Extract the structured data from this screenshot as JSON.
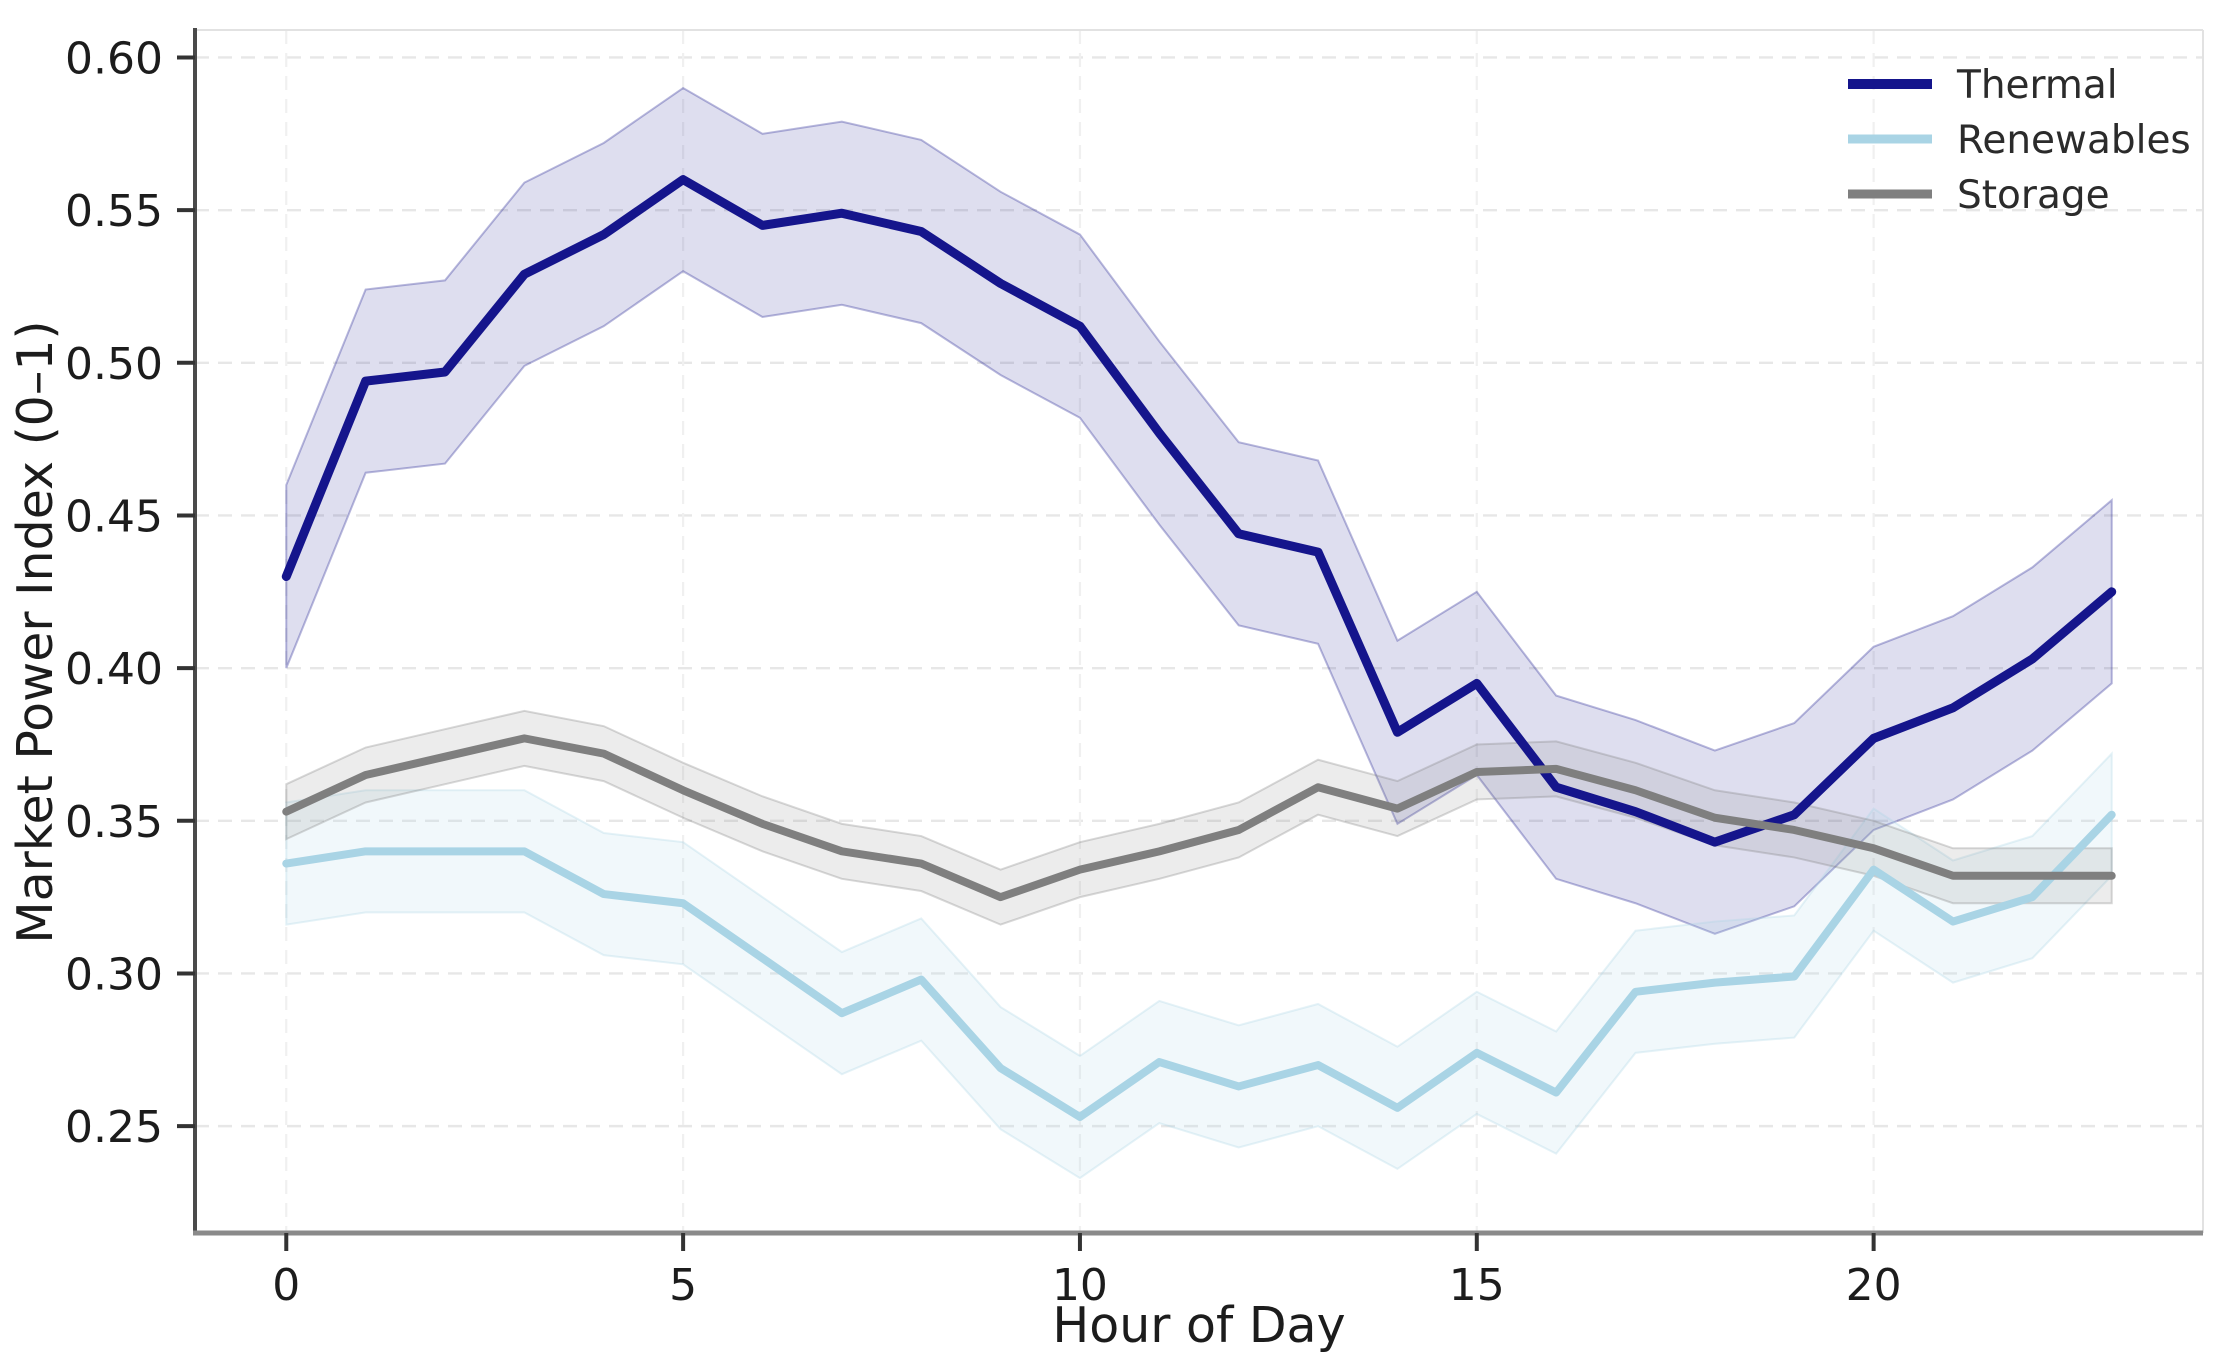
{
  "chart_data": {
    "type": "line",
    "title": "",
    "xlabel": "Hour of Day",
    "ylabel": "Market Power Index (0–1)",
    "x": [
      0,
      1,
      2,
      3,
      4,
      5,
      6,
      7,
      8,
      9,
      10,
      11,
      12,
      13,
      14,
      15,
      16,
      17,
      18,
      19,
      20,
      21,
      22,
      23
    ],
    "xlim": [
      -1.15,
      24.15
    ],
    "ylim": [
      0.215,
      0.609
    ],
    "x_ticks": [
      0,
      5,
      10,
      15,
      20
    ],
    "y_ticks": [
      0.25,
      0.3,
      0.35,
      0.4,
      0.45,
      0.5,
      0.55,
      0.6
    ],
    "grid": "dashed horizontal and vertical gridlines",
    "legend_position": "upper right",
    "background_color": "#ffffff",
    "series": [
      {
        "name": "Thermal",
        "color": "#15158c",
        "line_width": 9,
        "band_half_width": 0.03,
        "band_opacity": 0.14,
        "values": [
          0.43,
          0.494,
          0.497,
          0.529,
          0.542,
          0.56,
          0.545,
          0.549,
          0.543,
          0.526,
          0.512,
          0.477,
          0.444,
          0.438,
          0.379,
          0.395,
          0.361,
          0.353,
          0.343,
          0.352,
          0.377,
          0.387,
          0.403,
          0.425
        ]
      },
      {
        "name": "Renewables",
        "color": "#a9d4e5",
        "line_width": 8,
        "band_half_width": 0.02,
        "band_opacity": 0.16,
        "values": [
          0.336,
          0.34,
          0.34,
          0.34,
          0.326,
          0.323,
          0.305,
          0.287,
          0.298,
          0.269,
          0.253,
          0.271,
          0.263,
          0.27,
          0.256,
          0.274,
          0.261,
          0.294,
          0.297,
          0.299,
          0.334,
          0.317,
          0.325,
          0.352
        ]
      },
      {
        "name": "Storage",
        "color": "#7f7f7f",
        "line_width": 8,
        "band_half_width": 0.009,
        "band_opacity": 0.15,
        "values": [
          0.353,
          0.365,
          0.371,
          0.377,
          0.372,
          0.36,
          0.349,
          0.34,
          0.336,
          0.325,
          0.334,
          0.34,
          0.347,
          0.361,
          0.354,
          0.366,
          0.367,
          0.36,
          0.351,
          0.347,
          0.341,
          0.332,
          0.332,
          0.332
        ]
      }
    ],
    "axis": {
      "left_spine_color": "#4a4a4a",
      "bottom_spine_color": "#8a8a8a",
      "faint_spine_color": "#e2e2e2",
      "tick_color": "#333333",
      "h_grid_color": "#e7e7e7",
      "v_grid_color": "#f0f0f0"
    }
  }
}
